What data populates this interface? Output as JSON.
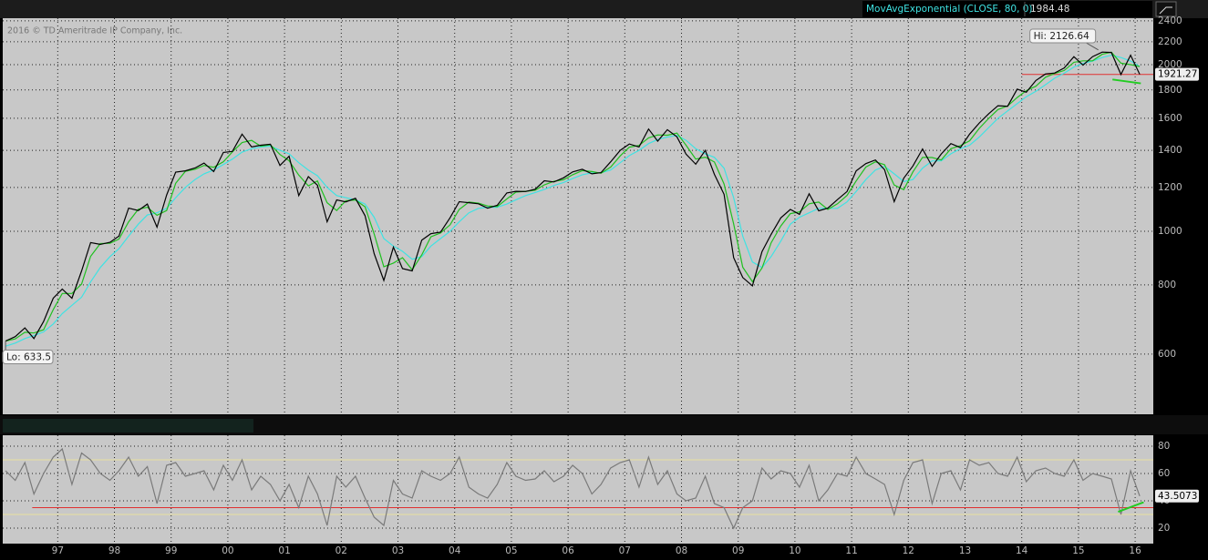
{
  "chart_data": [
    {
      "type": "line",
      "log": true,
      "grid": true,
      "copyright": "2016 © TD Ameritrade IP Company, Inc.",
      "indicator": "MovAvgExponential (CLOSE, 80, 0)",
      "xlim": [
        1996.03,
        2016.32
      ],
      "xticks": [
        {
          "value": 1997,
          "label": "97"
        },
        {
          "value": 1998,
          "label": "98"
        },
        {
          "value": 1999,
          "label": "99"
        },
        {
          "value": 2000,
          "label": "00"
        },
        {
          "value": 2001,
          "label": "01"
        },
        {
          "value": 2002,
          "label": "02"
        },
        {
          "value": 2003,
          "label": "03"
        },
        {
          "value": 2004,
          "label": "04"
        },
        {
          "value": 2005,
          "label": "05"
        },
        {
          "value": 2006,
          "label": "06"
        },
        {
          "value": 2007,
          "label": "07"
        },
        {
          "value": 2008,
          "label": "08"
        },
        {
          "value": 2009,
          "label": "09"
        },
        {
          "value": 2010,
          "label": "10"
        },
        {
          "value": 2011,
          "label": "11"
        },
        {
          "value": 2012,
          "label": "12"
        },
        {
          "value": 2013,
          "label": "13"
        },
        {
          "value": 2014,
          "label": "14"
        },
        {
          "value": 2015,
          "label": "15"
        },
        {
          "value": 2016,
          "label": "16"
        }
      ],
      "ylim": [
        467,
        2426
      ],
      "yticks": [
        600,
        800,
        1000,
        1200,
        1400,
        1600,
        1800,
        2000,
        2200,
        2400
      ],
      "x": [
        1996.08,
        1996.25,
        1996.42,
        1996.58,
        1996.75,
        1996.92,
        1997.08,
        1997.25,
        1997.42,
        1997.58,
        1997.75,
        1997.92,
        1998.08,
        1998.25,
        1998.42,
        1998.58,
        1998.75,
        1998.92,
        1999.08,
        1999.25,
        1999.42,
        1999.58,
        1999.75,
        1999.92,
        2000.08,
        2000.25,
        2000.42,
        2000.58,
        2000.75,
        2000.92,
        2001.08,
        2001.25,
        2001.42,
        2001.58,
        2001.75,
        2001.92,
        2002.08,
        2002.25,
        2002.42,
        2002.58,
        2002.75,
        2002.92,
        2003.08,
        2003.25,
        2003.42,
        2003.58,
        2003.75,
        2003.92,
        2004.08,
        2004.25,
        2004.42,
        2004.58,
        2004.75,
        2004.92,
        2005.08,
        2005.25,
        2005.42,
        2005.58,
        2005.75,
        2005.92,
        2006.08,
        2006.25,
        2006.42,
        2006.58,
        2006.75,
        2006.92,
        2007.08,
        2007.25,
        2007.42,
        2007.58,
        2007.75,
        2007.92,
        2008.08,
        2008.25,
        2008.42,
        2008.58,
        2008.75,
        2008.92,
        2009.08,
        2009.25,
        2009.42,
        2009.58,
        2009.75,
        2009.92,
        2010.08,
        2010.25,
        2010.42,
        2010.58,
        2010.75,
        2010.92,
        2011.08,
        2011.25,
        2011.42,
        2011.58,
        2011.75,
        2011.92,
        2012.08,
        2012.25,
        2012.42,
        2012.58,
        2012.75,
        2012.92,
        2013.08,
        2013.25,
        2013.42,
        2013.58,
        2013.75,
        2013.92,
        2014.08,
        2014.25,
        2014.42,
        2014.58,
        2014.75,
        2014.92,
        2015.08,
        2015.25,
        2015.42,
        2015.58,
        2015.75,
        2015.92,
        2016.08
      ],
      "series": [
        {
          "name": "MovAvgExponential (CLOSE, 80, 0)",
          "color": "#3fe3e3",
          "values": [
            620,
            628,
            640,
            648,
            658,
            680,
            710,
            735,
            760,
            810,
            860,
            900,
            930,
            980,
            1030,
            1070,
            1080,
            1100,
            1150,
            1200,
            1240,
            1270,
            1290,
            1320,
            1350,
            1390,
            1410,
            1420,
            1425,
            1400,
            1380,
            1330,
            1290,
            1260,
            1200,
            1160,
            1150,
            1140,
            1120,
            1060,
            970,
            940,
            920,
            890,
            900,
            940,
            970,
            1000,
            1040,
            1080,
            1100,
            1105,
            1105,
            1120,
            1140,
            1160,
            1175,
            1190,
            1210,
            1225,
            1245,
            1265,
            1275,
            1275,
            1290,
            1330,
            1370,
            1400,
            1440,
            1465,
            1480,
            1490,
            1460,
            1410,
            1380,
            1360,
            1300,
            1150,
            980,
            880,
            860,
            900,
            960,
            1030,
            1060,
            1080,
            1100,
            1100,
            1100,
            1130,
            1180,
            1240,
            1290,
            1310,
            1270,
            1230,
            1240,
            1300,
            1340,
            1340,
            1380,
            1410,
            1430,
            1480,
            1540,
            1600,
            1650,
            1700,
            1750,
            1790,
            1840,
            1890,
            1930,
            1980,
            2010,
            2030,
            2060,
            2080,
            2060,
            2030,
            1984.48
          ]
        },
        {
          "color": "#1fc01f",
          "values": [
            633.5,
            639,
            657,
            655,
            664,
            722,
            772,
            772,
            803,
            901,
            950,
            951,
            968,
            1040,
            1096,
            1105,
            1069,
            1090,
            1221,
            1283,
            1294,
            1315,
            1305,
            1335,
            1391,
            1446,
            1459,
            1425,
            1433,
            1376,
            1341,
            1263,
            1208,
            1233,
            1126,
            1090,
            1135,
            1139,
            1107,
            989,
            863,
            876,
            896,
            852,
            906,
            977,
            993,
            1027,
            1095,
            1129,
            1124,
            1111,
            1108,
            1144,
            1177,
            1181,
            1186,
            1213,
            1231,
            1239,
            1265,
            1287,
            1282,
            1273,
            1306,
            1368,
            1419,
            1429,
            1475,
            1493,
            1491,
            1504,
            1430,
            1350,
            1361,
            1334,
            1217,
            1031,
            861,
            811,
            858,
            953,
            1022,
            1076,
            1084,
            1121,
            1129,
            1095,
            1121,
            1161,
            1233,
            1306,
            1335,
            1319,
            1212,
            1189,
            1280,
            1360,
            1359,
            1345,
            1410,
            1428,
            1457,
            1534,
            1600,
            1659,
            1684,
            1744,
            1795,
            1828,
            1898,
            1928,
            1952,
            2020,
            2032,
            2032,
            2088,
            2106,
            2012,
            2000,
            1985
          ]
        },
        {
          "color": "#000000",
          "values": [
            633.5,
            645,
            669,
            640,
            687,
            757,
            786,
            757,
            848,
            954,
            947,
            955,
            980,
            1101,
            1090,
            1120,
            1017,
            1163,
            1279,
            1286,
            1301,
            1328,
            1282,
            1388,
            1394,
            1498,
            1420,
            1430,
            1436,
            1315,
            1366,
            1160,
            1255,
            1211,
            1040,
            1139,
            1130,
            1147,
            1067,
            911,
            815,
            936,
            856,
            848,
            964,
            990,
            996,
            1058,
            1131,
            1126,
            1121,
            1101,
            1114,
            1173,
            1181,
            1180,
            1191,
            1234,
            1228,
            1249,
            1280,
            1294,
            1270,
            1276,
            1335,
            1400,
            1438,
            1420,
            1530,
            1455,
            1526,
            1481,
            1378,
            1322,
            1400,
            1267,
            1166,
            896,
            825,
            797,
            919,
            987,
            1057,
            1095,
            1073,
            1169,
            1089,
            1101,
            1141,
            1180,
            1286,
            1325,
            1345,
            1292,
            1131,
            1247,
            1312,
            1408,
            1310,
            1379,
            1440,
            1416,
            1498,
            1569,
            1631,
            1686,
            1682,
            1806,
            1783,
            1872,
            1924,
            1931,
            1972,
            2068,
            1995,
            2068,
            2107,
            2104,
            1920,
            2080,
            1921.27
          ]
        }
      ],
      "annotations": [
        {
          "text": "Hi: 2126.64",
          "value": 2126.64,
          "x": 2015.35
        },
        {
          "text": "Lo: 633.5",
          "value": 633.5,
          "x": 1996.08
        }
      ],
      "hlines": [
        {
          "value": 1920,
          "from": 2014.0,
          "color": "#e03030"
        }
      ],
      "trendlines": [
        {
          "x": [
            2015.6,
            2016.1
          ],
          "values": [
            1880,
            1850
          ],
          "color": "#22cc22"
        }
      ]
    },
    {
      "type": "line",
      "grid": true,
      "xlim": [
        1996.03,
        2016.32
      ],
      "xticks": [
        {
          "value": 1997,
          "label": "97"
        },
        {
          "value": 1998,
          "label": "98"
        },
        {
          "value": 1999,
          "label": "99"
        },
        {
          "value": 2000,
          "label": "00"
        },
        {
          "value": 2001,
          "label": "01"
        },
        {
          "value": 2002,
          "label": "02"
        },
        {
          "value": 2003,
          "label": "03"
        },
        {
          "value": 2004,
          "label": "04"
        },
        {
          "value": 2005,
          "label": "05"
        },
        {
          "value": 2006,
          "label": "06"
        },
        {
          "value": 2007,
          "label": "07"
        },
        {
          "value": 2008,
          "label": "08"
        },
        {
          "value": 2009,
          "label": "09"
        },
        {
          "value": 2010,
          "label": "10"
        },
        {
          "value": 2011,
          "label": "11"
        },
        {
          "value": 2012,
          "label": "12"
        },
        {
          "value": 2013,
          "label": "13"
        },
        {
          "value": 2014,
          "label": "14"
        },
        {
          "value": 2015,
          "label": "15"
        },
        {
          "value": 2016,
          "label": "16"
        }
      ],
      "ylim": [
        8.7,
        88
      ],
      "yticks": [
        20,
        40,
        60,
        80
      ],
      "x": [
        1996.08,
        1996.25,
        1996.42,
        1996.58,
        1996.75,
        1996.92,
        1997.08,
        1997.25,
        1997.42,
        1997.58,
        1997.75,
        1997.92,
        1998.08,
        1998.25,
        1998.42,
        1998.58,
        1998.75,
        1998.92,
        1999.08,
        1999.25,
        1999.42,
        1999.58,
        1999.75,
        1999.92,
        2000.08,
        2000.25,
        2000.42,
        2000.58,
        2000.75,
        2000.92,
        2001.08,
        2001.25,
        2001.42,
        2001.58,
        2001.75,
        2001.92,
        2002.08,
        2002.25,
        2002.42,
        2002.58,
        2002.75,
        2002.92,
        2003.08,
        2003.25,
        2003.42,
        2003.58,
        2003.75,
        2003.92,
        2004.08,
        2004.25,
        2004.42,
        2004.58,
        2004.75,
        2004.92,
        2005.08,
        2005.25,
        2005.42,
        2005.58,
        2005.75,
        2005.92,
        2006.08,
        2006.25,
        2006.42,
        2006.58,
        2006.75,
        2006.92,
        2007.08,
        2007.25,
        2007.42,
        2007.58,
        2007.75,
        2007.92,
        2008.08,
        2008.25,
        2008.42,
        2008.58,
        2008.75,
        2008.92,
        2009.08,
        2009.25,
        2009.42,
        2009.58,
        2009.75,
        2009.92,
        2010.08,
        2010.25,
        2010.42,
        2010.58,
        2010.75,
        2010.92,
        2011.08,
        2011.25,
        2011.42,
        2011.58,
        2011.75,
        2011.92,
        2012.08,
        2012.25,
        2012.42,
        2012.58,
        2012.75,
        2012.92,
        2013.08,
        2013.25,
        2013.42,
        2013.58,
        2013.75,
        2013.92,
        2014.08,
        2014.25,
        2014.42,
        2014.58,
        2014.75,
        2014.92,
        2015.08,
        2015.25,
        2015.42,
        2015.58,
        2015.75,
        2015.92,
        2016.08
      ],
      "series": [
        {
          "color": "#7a7a7a",
          "values": [
            62,
            55,
            68,
            45,
            60,
            72,
            78,
            52,
            75,
            70,
            60,
            55,
            62,
            72,
            58,
            65,
            38,
            66,
            68,
            58,
            60,
            62,
            48,
            66,
            55,
            70,
            48,
            58,
            52,
            40,
            52,
            35,
            58,
            45,
            22,
            58,
            50,
            58,
            42,
            28,
            22,
            55,
            45,
            42,
            62,
            58,
            55,
            60,
            72,
            50,
            45,
            42,
            52,
            68,
            58,
            55,
            56,
            62,
            54,
            58,
            66,
            60,
            45,
            52,
            64,
            68,
            70,
            50,
            72,
            52,
            62,
            45,
            40,
            42,
            58,
            38,
            35,
            20,
            35,
            40,
            64,
            56,
            62,
            60,
            50,
            66,
            40,
            48,
            60,
            58,
            72,
            60,
            56,
            52,
            30,
            55,
            68,
            70,
            38,
            60,
            62,
            48,
            70,
            66,
            68,
            60,
            58,
            72,
            54,
            62,
            64,
            60,
            58,
            70,
            55,
            60,
            58,
            56,
            30,
            62,
            43.5073
          ]
        }
      ],
      "hlines": [
        {
          "value": 70,
          "from": 1996.03,
          "color": "#e8e0a0"
        },
        {
          "value": 30,
          "from": 1996.03,
          "color": "#e8e0a0"
        },
        {
          "value": 35,
          "from": 1996.55,
          "color": "#e03030"
        }
      ],
      "trendlines": [
        {
          "x": [
            2015.7,
            2016.15
          ],
          "values": [
            32,
            39
          ],
          "color": "#22cc22"
        }
      ]
    }
  ]
}
